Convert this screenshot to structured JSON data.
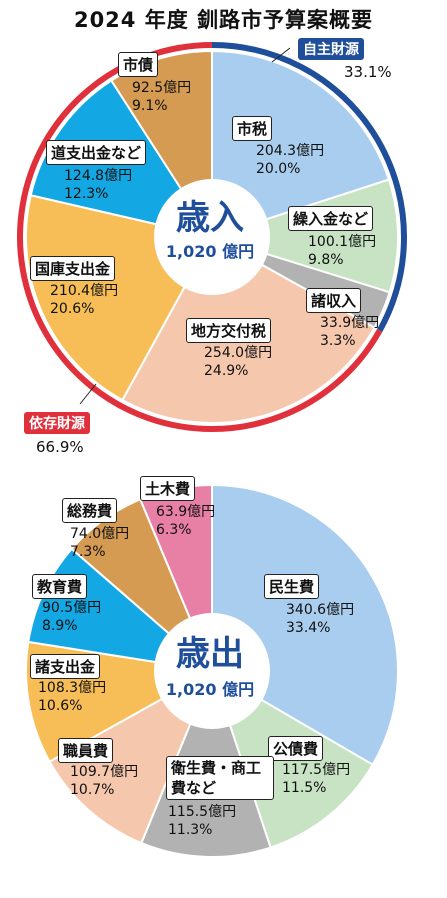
{
  "title": "2024 年度 釧路市予算案概要",
  "chart_data": [
    {
      "type": "pie",
      "center_label": "歳入",
      "total": "1,020 億円",
      "groups": [
        {
          "label": "自主財源",
          "percent": "33.1%",
          "color": "#1f4f9a"
        },
        {
          "label": "依存財源",
          "percent": "66.9%",
          "color": "#e0303c"
        }
      ],
      "slices": [
        {
          "name": "市税",
          "amount": 204.3,
          "amount_label": "204.3億円",
          "percent": 20.0,
          "percent_label": "20.0%",
          "color": "#a9cdee"
        },
        {
          "name": "繰入金など",
          "amount": 100.1,
          "amount_label": "100.1億円",
          "percent": 9.8,
          "percent_label": "9.8%",
          "color": "#c7e3c3"
        },
        {
          "name": "諸収入",
          "amount": 33.9,
          "amount_label": "33.9億円",
          "percent": 3.3,
          "percent_label": "3.3%",
          "color": "#b2b2b2"
        },
        {
          "name": "地方交付税",
          "amount": 254.0,
          "amount_label": "254.0億円",
          "percent": 24.9,
          "percent_label": "24.9%",
          "color": "#f5c8ae"
        },
        {
          "name": "国庫支出金",
          "amount": 210.4,
          "amount_label": "210.4億円",
          "percent": 20.6,
          "percent_label": "20.6%",
          "color": "#f7bd56"
        },
        {
          "name": "道支出金など",
          "amount": 124.8,
          "amount_label": "124.8億円",
          "percent": 12.3,
          "percent_label": "12.3%",
          "color": "#13a7e3"
        },
        {
          "name": "市債",
          "amount": 92.5,
          "amount_label": "92.5億円",
          "percent": 9.1,
          "percent_label": "9.1%",
          "color": "#d59b53"
        }
      ]
    },
    {
      "type": "pie",
      "center_label": "歳出",
      "total": "1,020 億円",
      "slices": [
        {
          "name": "民生費",
          "amount": 340.6,
          "amount_label": "340.6億円",
          "percent": 33.4,
          "percent_label": "33.4%",
          "color": "#a9cdee"
        },
        {
          "name": "公債費",
          "amount": 117.5,
          "amount_label": "117.5億円",
          "percent": 11.5,
          "percent_label": "11.5%",
          "color": "#c7e3c3"
        },
        {
          "name": "衛生費・商工費など",
          "amount": 115.5,
          "amount_label": "115.5億円",
          "percent": 11.3,
          "percent_label": "11.3%",
          "color": "#b2b2b2"
        },
        {
          "name": "職員費",
          "amount": 109.7,
          "amount_label": "109.7億円",
          "percent": 10.7,
          "percent_label": "10.7%",
          "color": "#f5c8ae"
        },
        {
          "name": "諸支出金",
          "amount": 108.3,
          "amount_label": "108.3億円",
          "percent": 10.6,
          "percent_label": "10.6%",
          "color": "#f7bd56"
        },
        {
          "name": "教育費",
          "amount": 90.5,
          "amount_label": "90.5億円",
          "percent": 8.9,
          "percent_label": "8.9%",
          "color": "#13a7e3"
        },
        {
          "name": "総務費",
          "amount": 74.0,
          "amount_label": "74.0億円",
          "percent": 7.3,
          "percent_label": "7.3%",
          "color": "#d59b53"
        },
        {
          "name": "土木費",
          "amount": 63.9,
          "amount_label": "63.9億円",
          "percent": 6.3,
          "percent_label": "6.3%",
          "color": "#e87fa5"
        }
      ]
    }
  ]
}
